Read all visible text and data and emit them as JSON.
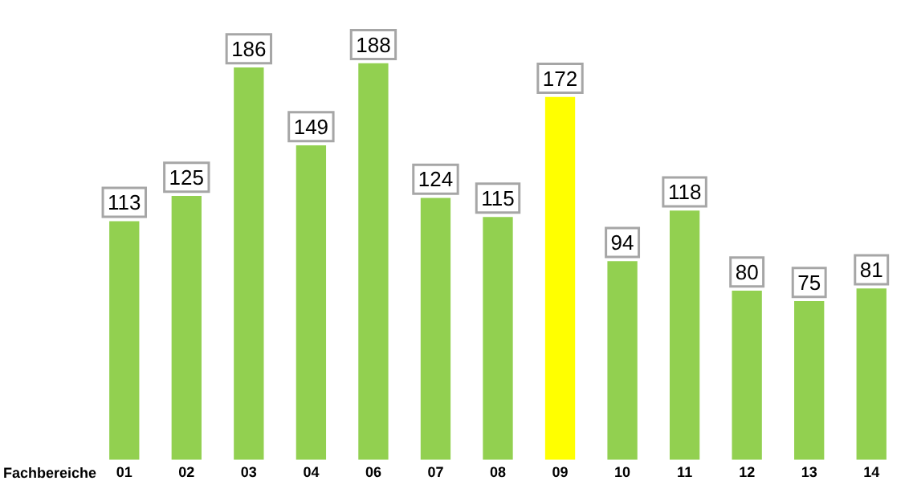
{
  "chart_data": {
    "type": "bar",
    "xlabel": "Fachbereiche",
    "categories": [
      "01",
      "02",
      "03",
      "04",
      "06",
      "07",
      "08",
      "09",
      "10",
      "11",
      "12",
      "13",
      "14"
    ],
    "values": [
      113,
      125,
      186,
      149,
      188,
      124,
      115,
      172,
      94,
      118,
      80,
      75,
      81
    ],
    "colors": [
      "#92d050",
      "#92d050",
      "#92d050",
      "#92d050",
      "#92d050",
      "#92d050",
      "#92d050",
      "#ffff00",
      "#92d050",
      "#92d050",
      "#92d050",
      "#92d050",
      "#92d050"
    ],
    "tick_labels": "x",
    "grid": false,
    "legend": false,
    "data_labels": true
  }
}
